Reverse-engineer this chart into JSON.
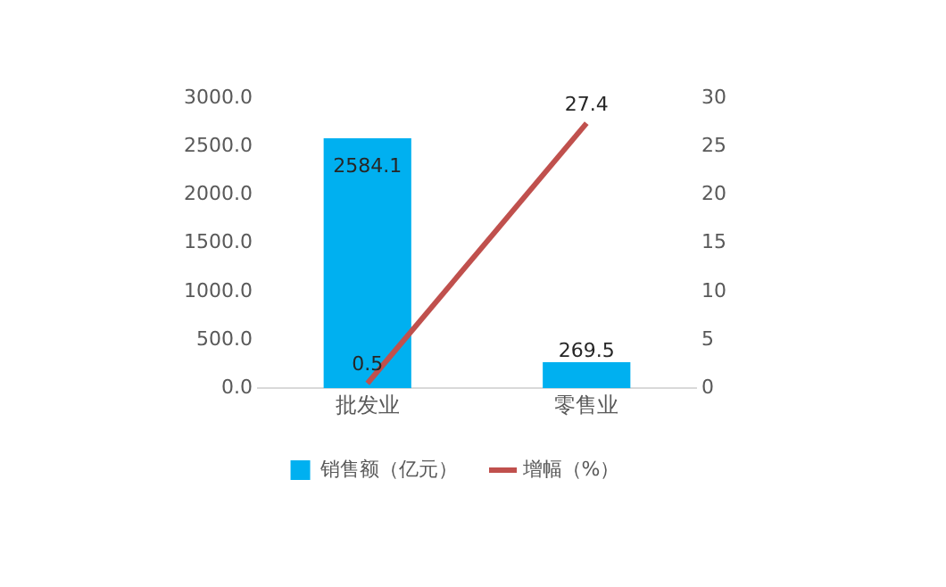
{
  "chart_data": {
    "type": "bar",
    "categories": [
      "批发业",
      "零售业"
    ],
    "series": [
      {
        "name": "销售额（亿元）",
        "color": "#00b0f0",
        "values": [
          2584.1,
          269.5
        ]
      },
      {
        "name": "增幅（%）",
        "type": "line",
        "axis": "y2",
        "color": "#c0504d",
        "values": [
          0.5,
          27.4
        ]
      }
    ],
    "ylim": [
      0,
      3000
    ],
    "yticks": [
      {
        "value": 0,
        "label": "0.0"
      },
      {
        "value": 500,
        "label": "500.0"
      },
      {
        "value": 1000,
        "label": "1000.0"
      },
      {
        "value": 1500,
        "label": "1500.0"
      },
      {
        "value": 2000,
        "label": "2000.0"
      },
      {
        "value": 2500,
        "label": "2500.0"
      },
      {
        "value": 3000,
        "label": "3000.0"
      }
    ],
    "y2lim": [
      0,
      30
    ],
    "y2ticks": [
      0,
      5,
      10,
      15,
      20,
      25,
      30
    ],
    "data_labels": true,
    "legend": "bottom",
    "grid": false,
    "marker": "none",
    "line_style": "solid"
  }
}
